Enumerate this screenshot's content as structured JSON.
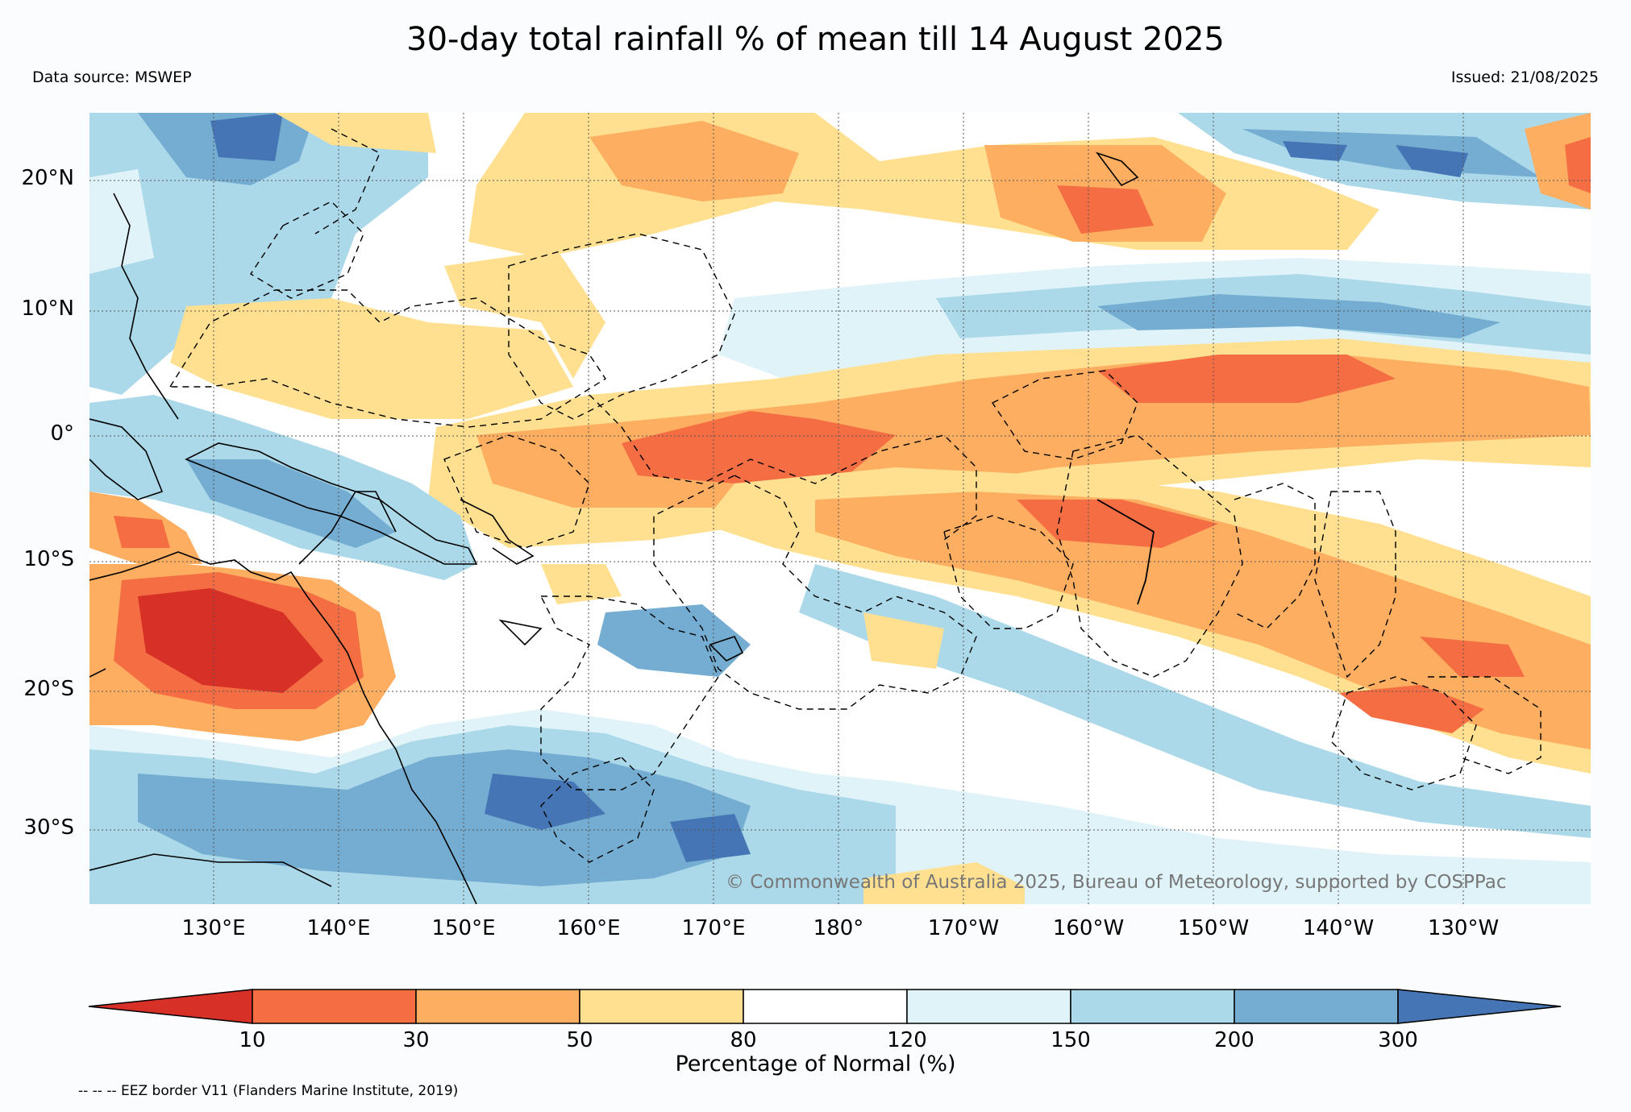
{
  "title": "30-day total rainfall % of mean till 14 August 2025",
  "data_source": "Data source: MSWEP",
  "issued": "Issued: 21/08/2025",
  "copyright": "© Commonwealth of Australia 2025, Bureau of Meteorology, supported by COSPPac",
  "lat_labels": [
    "20°N",
    "10°N",
    "0°",
    "10°S",
    "20°S",
    "30°S"
  ],
  "lon_labels": [
    "130°E",
    "140°E",
    "150°E",
    "160°E",
    "170°E",
    "180°",
    "170°W",
    "160°W",
    "150°W",
    "140°W",
    "130°W"
  ],
  "colorbar": {
    "label": "Percentage of Normal (%)",
    "ticks": [
      "10",
      "30",
      "50",
      "80",
      "120",
      "150",
      "200",
      "300"
    ],
    "colors": [
      "#d73027",
      "#f46d43",
      "#fdae61",
      "#fee090",
      "#ffffff",
      "#e0f3f8",
      "#abd9e9",
      "#74add1",
      "#4575b4"
    ]
  },
  "eez_note": "-- -- -- EEZ border V11 (Flanders Marine Institute, 2019)"
}
